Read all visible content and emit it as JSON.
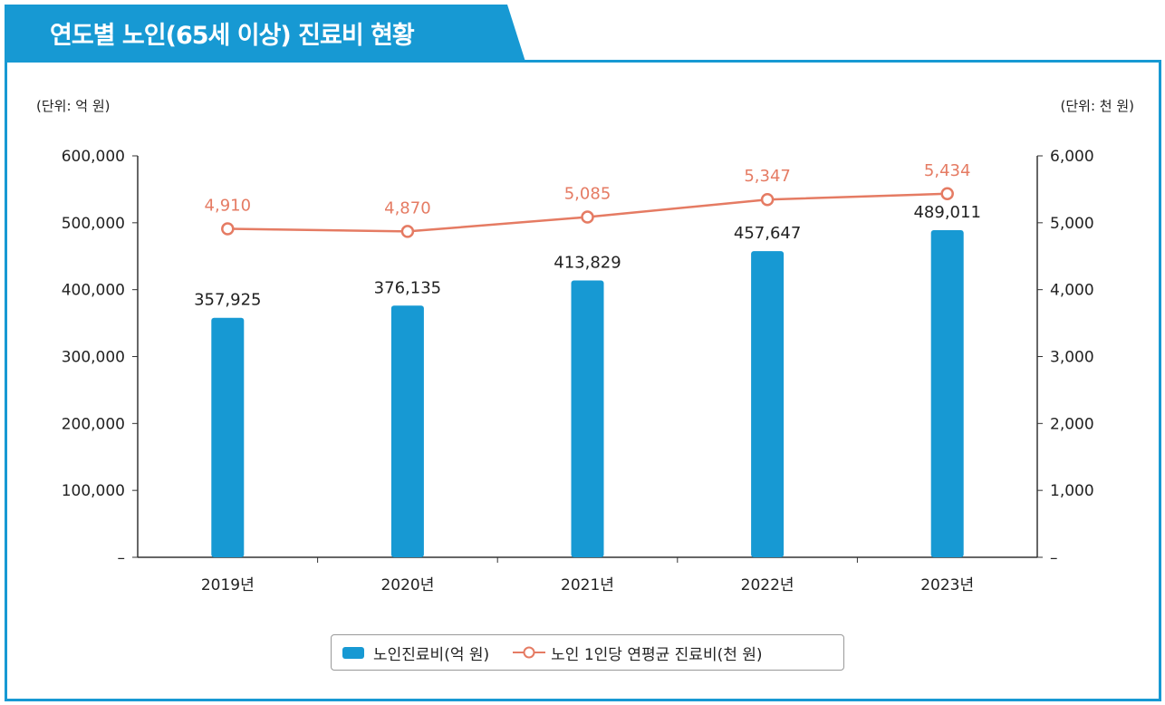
{
  "title": "연도별  노인(65세 이상) 진료비 현황",
  "colors": {
    "bar": "#1799d3",
    "line": "#e57b63",
    "frame": "#1799d3"
  },
  "chart_data": {
    "type": "bar+line",
    "categories": [
      "2019년",
      "2020년",
      "2021년",
      "2022년",
      "2023년"
    ],
    "left_unit": "(단위: 억 원)",
    "right_unit": "(단위: 천 원)",
    "left_ylim": [
      0,
      600000
    ],
    "right_ylim": [
      0,
      6000
    ],
    "left_ticks": [
      "–",
      "100,000",
      "200,000",
      "300,000",
      "400,000",
      "500,000",
      "600,000"
    ],
    "right_ticks": [
      "–",
      "1,000",
      "2,000",
      "3,000",
      "4,000",
      "5,000",
      "6,000"
    ],
    "series": [
      {
        "name": "노인진료비(억 원)",
        "type": "bar",
        "axis": "left",
        "values": [
          357925,
          376135,
          413829,
          457647,
          489011
        ],
        "labels": [
          "357,925",
          "376,135",
          "413,829",
          "457,647",
          "489,011"
        ]
      },
      {
        "name": "노인 1인당 연평균 진료비(천 원)",
        "type": "line",
        "axis": "right",
        "values": [
          4910,
          4870,
          5085,
          5347,
          5434
        ],
        "labels": [
          "4,910",
          "4,870",
          "5,085",
          "5,347",
          "5,434"
        ]
      }
    ],
    "grid": false,
    "legend": "bottom"
  }
}
